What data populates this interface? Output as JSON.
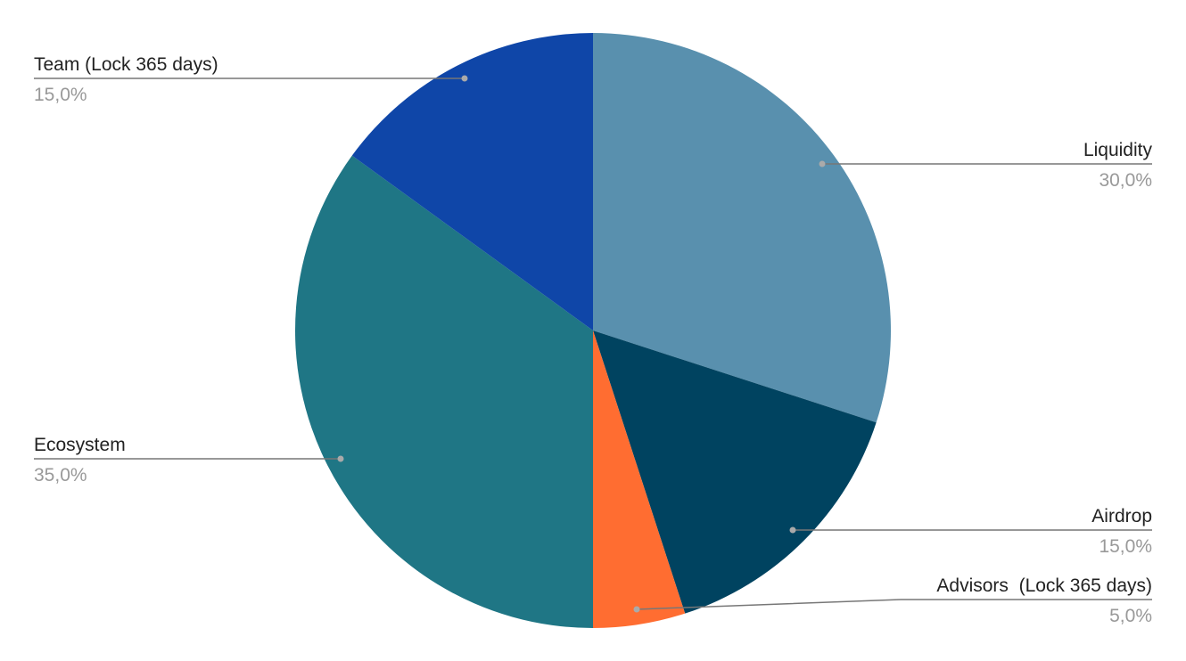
{
  "chart_data": {
    "type": "pie",
    "categories": [
      "Liquidity",
      "Airdrop",
      "Advisors  (Lock 365 days)",
      "Ecosystem",
      "Team (Lock 365 days)"
    ],
    "values": [
      30,
      15,
      5,
      35,
      15
    ],
    "value_labels": [
      "30,0%",
      "15,0%",
      "5,0%",
      "35,0%",
      "15,0%"
    ],
    "colors": [
      "#5990ae",
      "#004360",
      "#ff6d31",
      "#1f7685",
      "#0f46a8"
    ]
  }
}
